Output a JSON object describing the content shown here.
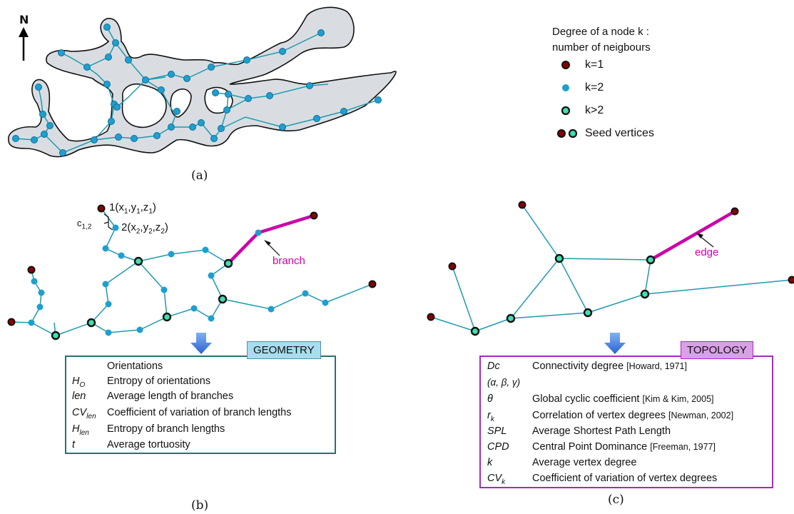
{
  "north": "N",
  "legend": {
    "title_line1": "Degree of a node k :",
    "title_line2": "number of neigbours",
    "items": [
      {
        "label": "k=1",
        "color": "#8b0000"
      },
      {
        "label": "k=2",
        "color": "#1e9fd0"
      },
      {
        "label": "k>2",
        "color": "#3de0b0"
      },
      {
        "label": "Seed vertices"
      }
    ]
  },
  "panels": {
    "a": "(a)",
    "b": "(b)",
    "c": "(c)"
  },
  "annotations": {
    "node1": "1(x",
    "node2": "2(x",
    "cost": "c",
    "branch": "branch",
    "edge": "edge"
  },
  "geometry": {
    "tag": "GEOMETRY",
    "rows": [
      {
        "sym": "",
        "desc": "Orientations"
      },
      {
        "sym": "H",
        "sub": "O",
        "desc": "Entropy of orientations"
      },
      {
        "sym": "len",
        "desc": "Average length of branches"
      },
      {
        "sym": "CV",
        "sub": "len",
        "desc": "Coefficient of variation of branch lengths"
      },
      {
        "sym": "H",
        "sub": "len",
        "desc": "Entropy of branch lengths"
      },
      {
        "sym": "t",
        "desc": "Average tortuosity"
      }
    ]
  },
  "topology": {
    "tag": "TOPOLOGY",
    "rows": [
      {
        "sym": "Dc",
        "desc": "Connectivity degree",
        "ref": "[Howard, 1971]"
      },
      {
        "sym": "(α, β, γ)",
        "desc": "",
        "ref": ""
      },
      {
        "sym": "θ",
        "desc": "Global cyclic coefficient",
        "ref": "[Kim & Kim, 2005]"
      },
      {
        "sym": "r",
        "sub": "k",
        "desc": "Correlation of vertex degrees",
        "ref": "[Newman, 2002]"
      },
      {
        "sym": "SPL",
        "desc": "Average Shortest Path Length",
        "ref": ""
      },
      {
        "sym": "CPD",
        "desc": "Central Point Dominance",
        "ref": "[Freeman, 1977]"
      },
      {
        "sym": "k",
        "desc": "Average vertex degree",
        "ref": ""
      },
      {
        "sym": "CV",
        "sub": "k",
        "desc": "Coefficient of variation of vertex degrees",
        "ref": ""
      }
    ]
  },
  "colors": {
    "edge": "#1f9aae",
    "node_k2": "#1e9fd0",
    "node_k1": "#8b0000",
    "node_hub": "#3de0b0",
    "branch": "#cc00aa",
    "geometry_border": "#2e6f6f",
    "geometry_tag_bg": "#a8dcef",
    "topology_border": "#9d2fbf",
    "topology_tag_bg": "#d9a0e6",
    "arrow": "#3b78e0",
    "cave_fill": "#d9dde2"
  }
}
